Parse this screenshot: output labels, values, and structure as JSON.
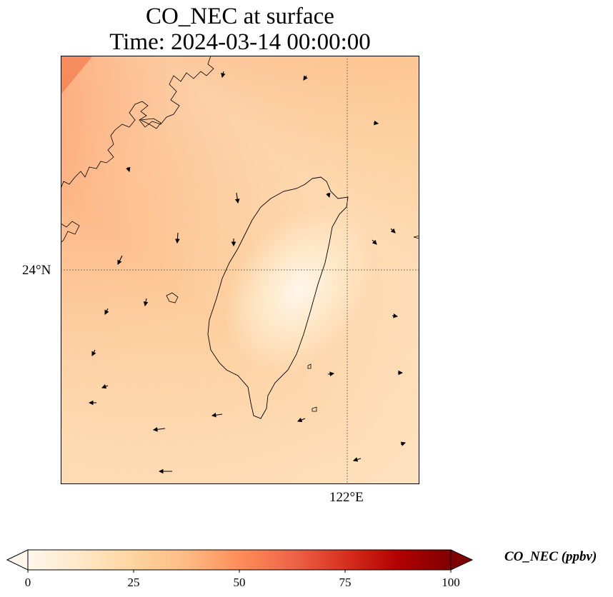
{
  "title": {
    "line1": "CO_NEC at surface",
    "line2": "Time: 2024-03-14 00:00:00"
  },
  "axes": {
    "lat_label": "24°N",
    "lon_label": "122°E"
  },
  "colorbar": {
    "label": "CO_NEC (ppbv)",
    "ticks": [
      "0",
      "25",
      "50",
      "75",
      "100"
    ],
    "colormap": "OrRd",
    "colors": [
      "#fff7ec",
      "#fee8c8",
      "#fdd49e",
      "#fdbb84",
      "#fc8d59",
      "#ef6548",
      "#d7301f",
      "#b30000",
      "#7f0000"
    ]
  },
  "map": {
    "gridline_style": "dotted",
    "features": [
      "Taiwan coastline",
      "Fujian coastline",
      "wind vectors"
    ]
  }
}
